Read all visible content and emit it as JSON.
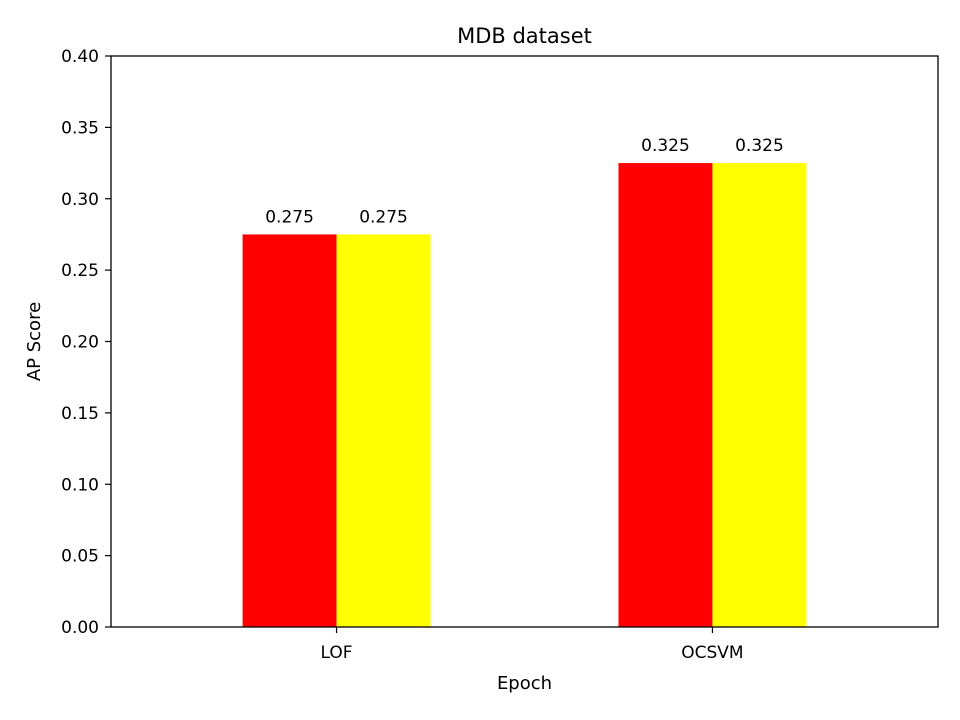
{
  "chart_data": {
    "type": "bar",
    "title": "MDB dataset",
    "xlabel": "Epoch",
    "ylabel": "AP Score",
    "categories": [
      "LOF",
      "OCSVM"
    ],
    "series": [
      {
        "color": "#ff0000",
        "values": [
          0.275,
          0.325
        ]
      },
      {
        "color": "#ffff00",
        "values": [
          0.275,
          0.325
        ]
      }
    ],
    "data_labels": [
      [
        "0.275",
        "0.325"
      ],
      [
        "0.275",
        "0.325"
      ]
    ],
    "ylim": [
      0,
      0.4
    ],
    "yticks": [
      "0.00",
      "0.05",
      "0.10",
      "0.15",
      "0.20",
      "0.25",
      "0.30",
      "0.35",
      "0.40"
    ],
    "grid": false,
    "legend": false
  }
}
